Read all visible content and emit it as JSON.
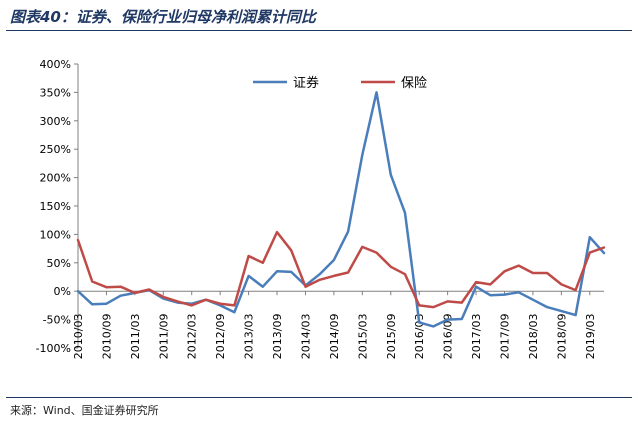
{
  "header": {
    "title": "图表40：证券、保险行业归母净利润累计同比"
  },
  "footer": {
    "source": "来源：Wind、国金证券研究所"
  },
  "chart_data": {
    "type": "line",
    "x": [
      "2010/03",
      "2010/06",
      "2010/09",
      "2010/12",
      "2011/03",
      "2011/06",
      "2011/09",
      "2011/12",
      "2012/03",
      "2012/06",
      "2012/09",
      "2012/12",
      "2013/03",
      "2013/06",
      "2013/09",
      "2013/12",
      "2014/03",
      "2014/06",
      "2014/09",
      "2014/12",
      "2015/03",
      "2015/06",
      "2015/09",
      "2015/12",
      "2016/03",
      "2016/06",
      "2016/09",
      "2016/12",
      "2017/03",
      "2017/06",
      "2017/09",
      "2017/12",
      "2018/03",
      "2018/06",
      "2018/09",
      "2018/12",
      "2019/03",
      "2019/06"
    ],
    "tick_labels": [
      "2010/03",
      "2010/09",
      "2011/03",
      "2011/09",
      "2012/03",
      "2012/09",
      "2013/03",
      "2013/09",
      "2014/03",
      "2014/09",
      "2015/03",
      "2015/09",
      "2016/03",
      "2016/09",
      "2017/03",
      "2017/09",
      "2018/03",
      "2018/09",
      "2019/03"
    ],
    "series": [
      {
        "name": "证券",
        "color": "#4a7ebb",
        "values": [
          0,
          -23,
          -22,
          -8,
          -3,
          2,
          -13,
          -20,
          -22,
          -15,
          -25,
          -37,
          27,
          8,
          35,
          34,
          10,
          30,
          55,
          105,
          240,
          350,
          205,
          138,
          -55,
          -62,
          -50,
          -49,
          8,
          -7,
          -6,
          -2,
          -15,
          -28,
          -35,
          -42,
          95,
          67
        ]
      },
      {
        "name": "保险",
        "color": "#be4b48",
        "values": [
          90,
          17,
          7,
          8,
          -3,
          3,
          -10,
          -18,
          -25,
          -15,
          -22,
          -25,
          62,
          50,
          104,
          72,
          8,
          20,
          27,
          33,
          78,
          68,
          43,
          30,
          -25,
          -28,
          -18,
          -20,
          16,
          12,
          35,
          45,
          32,
          32,
          12,
          2,
          68,
          77
        ]
      }
    ],
    "yticks": [
      "400%",
      "350%",
      "300%",
      "250%",
      "200%",
      "150%",
      "100%",
      "50%",
      "0%",
      "-50%",
      "-100%"
    ],
    "ylim": [
      -100,
      400
    ],
    "legend_position": "top-center",
    "grid": false
  }
}
